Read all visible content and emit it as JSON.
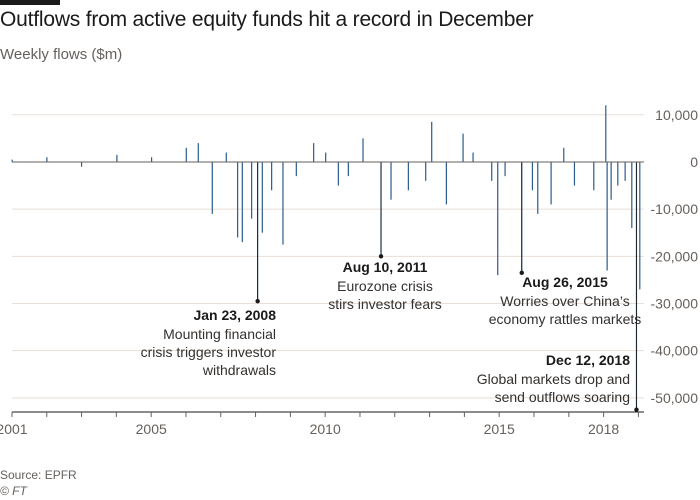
{
  "title": "Outflows from active equity funds hit a record in December",
  "subtitle": "Weekly flows ($m)",
  "source": "Source: EPFR",
  "credit": "© FT",
  "colors": {
    "bar": "#2b5c8e",
    "grid": "#e9ded5",
    "zero": "#66605c",
    "text": "#33302e"
  },
  "chart_data": {
    "type": "bar",
    "xlabel": "",
    "ylabel": "",
    "xlim": [
      "2001-01-01",
      "2019-03-01"
    ],
    "ylim": [
      -53000,
      12500
    ],
    "y_ticks": [
      10000,
      0,
      -10000,
      -20000,
      -30000,
      -40000,
      -50000
    ],
    "y_tick_labels": [
      "10,000",
      "0",
      "-10,000",
      "-20,000",
      "-30,000",
      "-40,000",
      "-50,000"
    ],
    "x_ticks": [
      "2001",
      "2005",
      "2010",
      "2015",
      "2018"
    ],
    "grid": "horizontal",
    "series": [
      {
        "frequency": "weekly",
        "x": [
          "2001-01-03",
          "2002-01-02",
          "2003-01-01",
          "2004-01-07",
          "2005-01-05",
          "2006-01-04",
          "2006-05-10",
          "2006-10-04",
          "2007-02-28",
          "2007-06-27",
          "2007-08-15",
          "2007-11-21",
          "2008-01-23",
          "2008-03-12",
          "2008-06-18",
          "2008-10-15",
          "2009-03-04",
          "2009-09-02",
          "2010-01-06",
          "2010-05-19",
          "2010-09-01",
          "2011-02-02",
          "2011-08-10",
          "2011-11-23",
          "2012-05-23",
          "2012-11-21",
          "2013-01-23",
          "2013-06-26",
          "2013-12-18",
          "2014-04-02",
          "2014-10-15",
          "2014-12-17",
          "2015-03-04",
          "2015-08-26",
          "2015-12-16",
          "2016-02-10",
          "2016-06-29",
          "2016-11-09",
          "2017-03-01",
          "2017-09-20",
          "2018-01-24",
          "2018-02-07",
          "2018-03-21",
          "2018-05-30",
          "2018-08-15",
          "2018-10-24",
          "2018-12-12",
          "2019-01-16"
        ],
        "values": [
          500,
          1000,
          -1000,
          1500,
          1000,
          3000,
          4000,
          -11000,
          2000,
          -16000,
          -17000,
          -12000,
          -29500,
          -15000,
          -6000,
          -17500,
          -3000,
          4000,
          2000,
          -5000,
          -3000,
          5000,
          -20000,
          -8000,
          -6000,
          -4000,
          8500,
          -9000,
          6000,
          2000,
          -4000,
          -24000,
          -3000,
          -23500,
          -6000,
          -11000,
          -9000,
          3000,
          -5000,
          -6000,
          12000,
          -23000,
          -8000,
          -5000,
          -4000,
          -14000,
          -52500,
          -27000
        ]
      }
    ],
    "annotations": [
      {
        "date": "2008-01-23",
        "value": -29500,
        "label": "Jan 23, 2008",
        "text": [
          "Mounting financial",
          "crisis triggers investor",
          "withdrawals"
        ]
      },
      {
        "date": "2011-08-10",
        "value": -20000,
        "label": "Aug 10, 2011",
        "text": [
          "Eurozone crisis",
          "stirs investor fears"
        ]
      },
      {
        "date": "2015-08-26",
        "value": -23500,
        "label": "Aug 26, 2015",
        "text": [
          "Worries over China’s",
          "economy rattles markets"
        ]
      },
      {
        "date": "2018-12-12",
        "value": -52500,
        "label": "Dec 12, 2018",
        "text": [
          "Global markets drop and",
          "send outflows soaring"
        ]
      }
    ]
  }
}
